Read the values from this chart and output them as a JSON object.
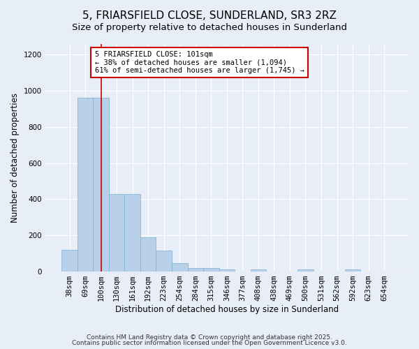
{
  "title1": "5, FRIARSFIELD CLOSE, SUNDERLAND, SR3 2RZ",
  "title2": "Size of property relative to detached houses in Sunderland",
  "xlabel": "Distribution of detached houses by size in Sunderland",
  "ylabel": "Number of detached properties",
  "categories": [
    "38sqm",
    "69sqm",
    "100sqm",
    "130sqm",
    "161sqm",
    "192sqm",
    "223sqm",
    "254sqm",
    "284sqm",
    "315sqm",
    "346sqm",
    "377sqm",
    "408sqm",
    "438sqm",
    "469sqm",
    "500sqm",
    "531sqm",
    "562sqm",
    "592sqm",
    "623sqm",
    "654sqm"
  ],
  "values": [
    120,
    960,
    960,
    430,
    430,
    190,
    115,
    45,
    20,
    20,
    10,
    0,
    10,
    0,
    0,
    10,
    0,
    0,
    10,
    0,
    0
  ],
  "bar_color": "#b8d0e8",
  "bar_edge_color": "#7aafd4",
  "vline_color": "#cc0000",
  "vline_x": 2.0,
  "annotation_line1": "5 FRIARSFIELD CLOSE: 101sqm",
  "annotation_line2": "← 38% of detached houses are smaller (1,094)",
  "annotation_line3": "61% of semi-detached houses are larger (1,745) →",
  "annotation_box_color": "#ffffff",
  "annotation_box_edge_color": "#cc0000",
  "ylim": [
    0,
    1260
  ],
  "yticks": [
    0,
    200,
    400,
    600,
    800,
    1000,
    1200
  ],
  "background_color": "#e8eef7",
  "footer1": "Contains HM Land Registry data © Crown copyright and database right 2025.",
  "footer2": "Contains public sector information licensed under the Open Government Licence v3.0.",
  "title1_fontsize": 11,
  "title2_fontsize": 9.5,
  "xlabel_fontsize": 8.5,
  "ylabel_fontsize": 8.5,
  "tick_fontsize": 7.5,
  "annotation_fontsize": 7.5,
  "footer_fontsize": 6.5
}
